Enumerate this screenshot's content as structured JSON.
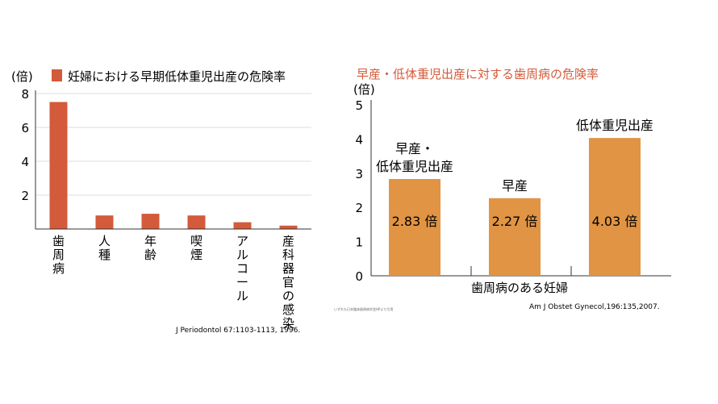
{
  "colors": {
    "chart1_bar": "#d35a3a",
    "chart2_bar": "#e09444",
    "chart2_title": "#d35a3a",
    "axis": "#333333"
  },
  "chart_data": [
    {
      "type": "bar",
      "unit": "(倍)",
      "legend": "妊婦における早期低体重児出産の危険率",
      "categories": [
        "歯周病",
        "人種",
        "年齢",
        "喫煙",
        "アルコール",
        "産科器官の感染"
      ],
      "values": [
        7.5,
        0.8,
        0.9,
        0.8,
        0.4,
        0.2
      ],
      "yticks": [
        2,
        4,
        6,
        8
      ],
      "ylim": [
        0,
        8
      ],
      "grid": true,
      "source": "J Periodontol 67:1103-1113, 1996."
    },
    {
      "type": "bar",
      "title": "早産・低体重児出産に対する歯周病の危険率",
      "unit": "(倍)",
      "categories": [
        "早産・低体重児出産",
        "早産",
        "低体重児出産"
      ],
      "category_labels": [
        [
          "早産・",
          "低体重児出産"
        ],
        [
          "早産"
        ],
        [
          "低体重児出産"
        ]
      ],
      "values": [
        2.83,
        2.27,
        4.03
      ],
      "data_labels": [
        "2.83 倍",
        "2.27 倍",
        "4.03 倍"
      ],
      "xlabel": "歯周病のある妊婦",
      "yticks": [
        0,
        1,
        2,
        3,
        4,
        5
      ],
      "ylim": [
        0,
        5
      ],
      "grid": false,
      "source": "Am J Obstet Gynecol,196:135,2007.",
      "note": "いずれも日本臨床歯周病学会HPより引用"
    }
  ]
}
